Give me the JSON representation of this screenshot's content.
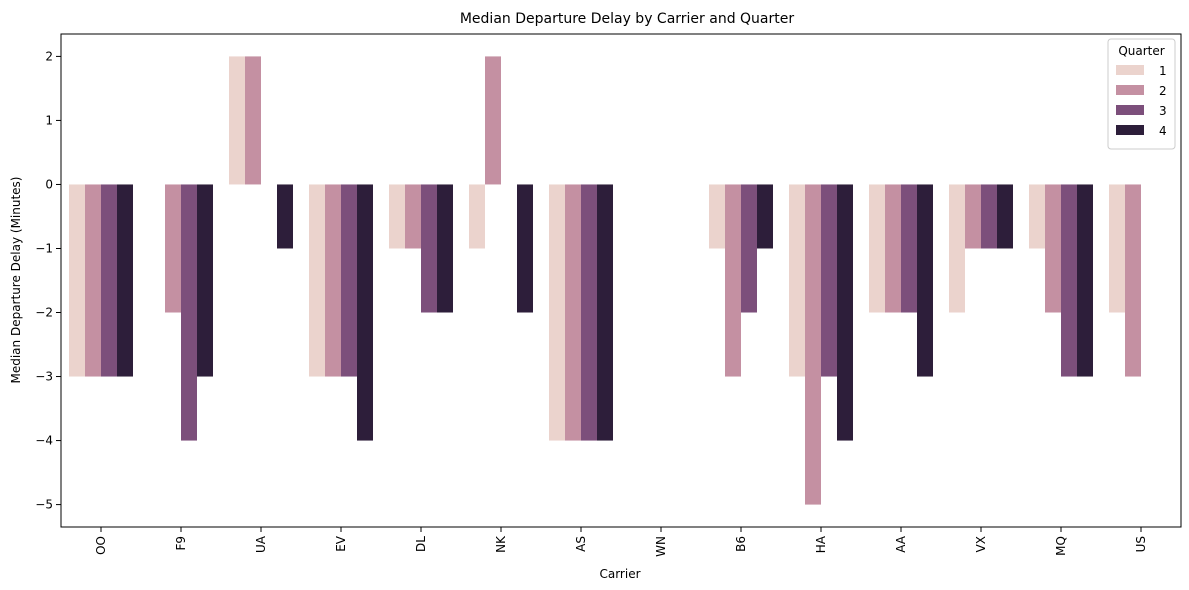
{
  "chart_data": {
    "type": "bar",
    "title": "Median Departure Delay by Carrier and Quarter",
    "xlabel": "Carrier",
    "ylabel": "Median Departure Delay (Minutes)",
    "ylim": [
      -5.35,
      2.35
    ],
    "yticks": [
      2,
      1,
      0,
      -1,
      -2,
      -3,
      -4,
      -5
    ],
    "ytick_labels": [
      "2",
      "1",
      "0",
      "−1",
      "−2",
      "−3",
      "−4",
      "−5"
    ],
    "categories": [
      "OO",
      "F9",
      "UA",
      "EV",
      "DL",
      "NK",
      "AS",
      "WN",
      "B6",
      "HA",
      "AA",
      "VX",
      "MQ",
      "US"
    ],
    "legend": {
      "title": "Quarter",
      "placement": "top-right"
    },
    "series": [
      {
        "name": "1",
        "color": "#ebd3cd",
        "values": [
          -3,
          null,
          2,
          -3,
          -1,
          -1,
          -4,
          null,
          -1,
          -3,
          -2,
          -2,
          -1,
          -2
        ]
      },
      {
        "name": "2",
        "color": "#c490a2",
        "values": [
          -3,
          -2,
          2,
          -3,
          -1,
          2,
          -4,
          null,
          -3,
          -5,
          -2,
          -1,
          -2,
          -3
        ]
      },
      {
        "name": "3",
        "color": "#7c4f7b",
        "values": [
          -3,
          -4,
          null,
          -3,
          -2,
          null,
          -4,
          null,
          -2,
          -3,
          -2,
          -1,
          -3,
          null
        ]
      },
      {
        "name": "4",
        "color": "#2d1e3a",
        "values": [
          -3,
          -3,
          -1,
          -4,
          -2,
          -2,
          -4,
          null,
          -1,
          -4,
          -3,
          -1,
          -3,
          null
        ]
      }
    ]
  }
}
